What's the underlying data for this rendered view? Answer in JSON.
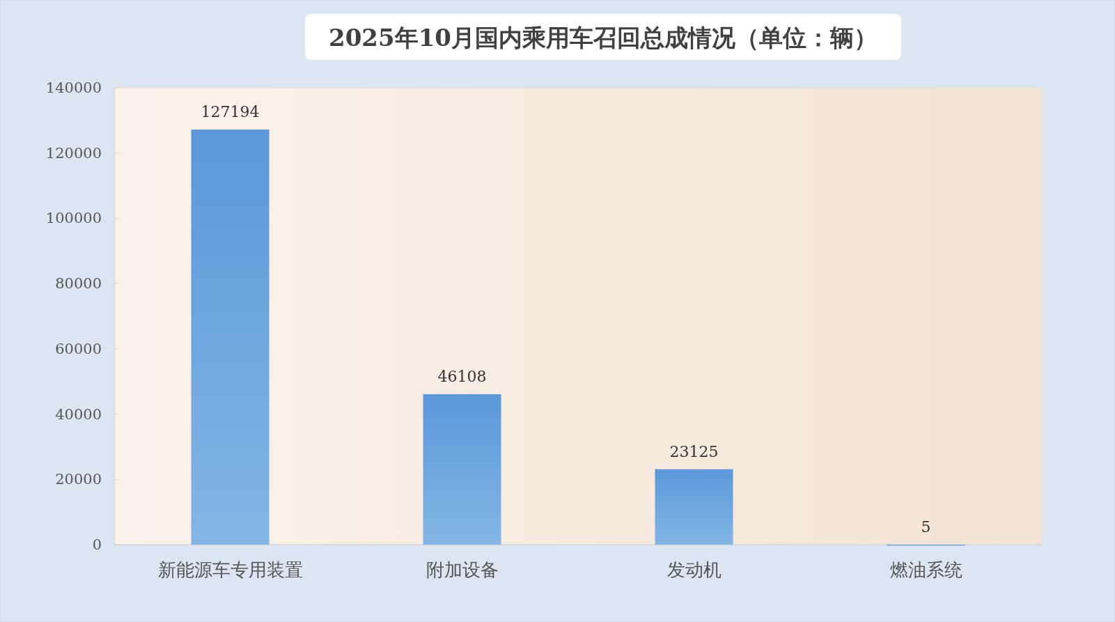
{
  "chart_data": {
    "type": "bar",
    "title": "2025年10月国内乘用车召回总成情况（单位：辆）",
    "categories": [
      "新能源车专用装置",
      "附加设备",
      "发动机",
      "燃油系统"
    ],
    "values": [
      127194,
      46108,
      23125,
      5
    ],
    "color": "#5b97da",
    "ylim": [
      0,
      140000
    ],
    "yticks": [
      0,
      20000,
      40000,
      60000,
      80000,
      100000,
      120000,
      140000
    ],
    "data_labels": true
  }
}
